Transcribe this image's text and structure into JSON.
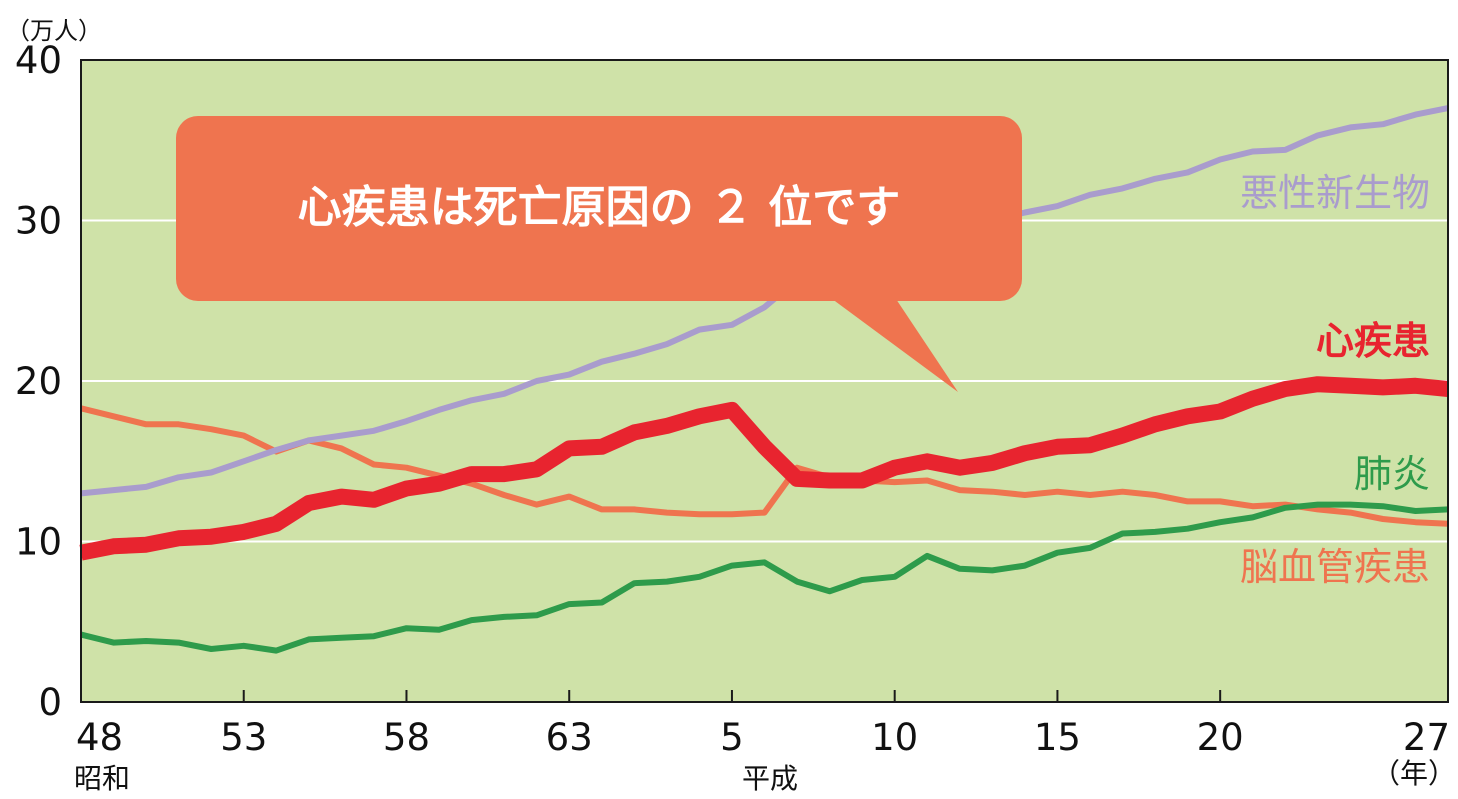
{
  "chart_data": {
    "type": "line",
    "y_unit": "（万人）",
    "x_unit": "（年）",
    "ylim": [
      0,
      40
    ],
    "y_ticks": [
      "0",
      "10",
      "20",
      "30",
      "40"
    ],
    "x_ticks": [
      "48",
      "53",
      "58",
      "63",
      "5",
      "10",
      "15",
      "20",
      "27"
    ],
    "era_labels": [
      "昭和",
      "平成"
    ],
    "callout": "心疾患は死亡原因の ２ 位です",
    "grid": true,
    "colors": {
      "plot_background": "#cfe2a8",
      "callout": "#ef744f",
      "malignant": "#a99ccd",
      "heart": "#e8242f",
      "pneumonia": "#2e9b4b",
      "cerebrovascular": "#ef744f"
    },
    "x": [
      "48",
      "49",
      "50",
      "51",
      "52",
      "53",
      "54",
      "55",
      "56",
      "57",
      "58",
      "59",
      "60",
      "61",
      "62",
      "63",
      "1",
      "2",
      "3",
      "4",
      "5",
      "6",
      "7",
      "8",
      "9",
      "10",
      "11",
      "12",
      "13",
      "14",
      "15",
      "16",
      "17",
      "18",
      "19",
      "20",
      "21",
      "22",
      "23",
      "24",
      "25",
      "26",
      "27"
    ],
    "series": [
      {
        "key": "malignant",
        "name": "悪性新生物",
        "values": [
          13.0,
          13.2,
          13.4,
          14.0,
          14.3,
          15.0,
          15.7,
          16.3,
          16.6,
          16.9,
          17.5,
          18.2,
          18.8,
          19.2,
          20.0,
          20.4,
          21.2,
          21.7,
          22.3,
          23.2,
          23.5,
          24.6,
          26.3,
          27.1,
          27.6,
          28.3,
          29.0,
          29.8,
          30.0,
          30.5,
          30.9,
          31.6,
          32.0,
          32.6,
          33.0,
          33.8,
          34.3,
          34.4,
          35.3,
          35.8,
          36.0,
          36.6,
          37.0
        ]
      },
      {
        "key": "heart",
        "name": "心疾患",
        "values": [
          9.3,
          9.7,
          9.8,
          10.2,
          10.3,
          10.6,
          11.1,
          12.4,
          12.8,
          12.6,
          13.3,
          13.6,
          14.2,
          14.2,
          14.5,
          15.8,
          15.9,
          16.8,
          17.2,
          17.8,
          18.2,
          15.9,
          13.9,
          13.8,
          13.8,
          14.6,
          15.0,
          14.6,
          14.9,
          15.5,
          15.9,
          16.0,
          16.6,
          17.3,
          17.8,
          18.1,
          18.9,
          19.5,
          19.8,
          19.7,
          19.6,
          19.7,
          19.5
        ]
      },
      {
        "key": "pneumonia",
        "name": "肺炎",
        "values": [
          4.2,
          3.7,
          3.8,
          3.7,
          3.3,
          3.5,
          3.2,
          3.9,
          4.0,
          4.1,
          4.6,
          4.5,
          5.1,
          5.3,
          5.4,
          6.1,
          6.2,
          7.4,
          7.5,
          7.8,
          8.5,
          8.7,
          7.5,
          6.9,
          7.6,
          7.8,
          9.1,
          8.3,
          8.2,
          8.5,
          9.3,
          9.6,
          10.5,
          10.6,
          10.8,
          11.2,
          11.5,
          12.1,
          12.3,
          12.3,
          12.2,
          11.9,
          12.0
        ]
      },
      {
        "key": "cerebrovascular",
        "name": "脳血管疾患",
        "values": [
          18.3,
          17.8,
          17.3,
          17.3,
          17.0,
          16.6,
          15.6,
          16.3,
          15.8,
          14.8,
          14.6,
          14.1,
          13.6,
          12.9,
          12.3,
          12.8,
          12.0,
          12.0,
          11.8,
          11.7,
          11.7,
          11.8,
          14.6,
          14.0,
          13.8,
          13.7,
          13.8,
          13.2,
          13.1,
          12.9,
          13.1,
          12.9,
          13.1,
          12.9,
          12.5,
          12.5,
          12.2,
          12.3,
          12.0,
          11.8,
          11.4,
          11.2,
          11.1
        ]
      }
    ]
  }
}
